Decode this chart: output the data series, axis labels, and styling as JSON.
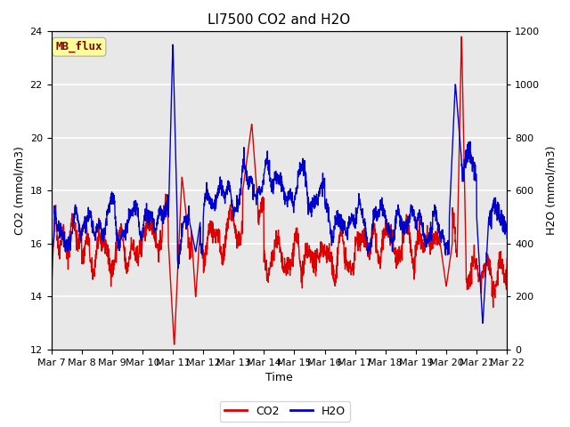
{
  "title": "LI7500 CO2 and H2O",
  "xlabel": "Time",
  "ylabel_left": "CO2 (mmol/m3)",
  "ylabel_right": "H2O (mmol/m3)",
  "ylim_left": [
    12,
    24
  ],
  "ylim_right": [
    0,
    1200
  ],
  "yticks_left": [
    12,
    14,
    16,
    18,
    20,
    22,
    24
  ],
  "yticks_right": [
    0,
    200,
    400,
    600,
    800,
    1000,
    1200
  ],
  "xtick_labels": [
    "Mar 7",
    "Mar 8",
    "Mar 9",
    "Mar 10",
    "Mar 11",
    "Mar 12",
    "Mar 13",
    "Mar 14",
    "Mar 15",
    "Mar 16",
    "Mar 17",
    "Mar 18",
    "Mar 19",
    "Mar 20",
    "Mar 21",
    "Mar 22"
  ],
  "color_co2": "#dd0000",
  "color_h2o": "#0000cc",
  "legend_co2": "CO2",
  "legend_h2o": "H2O",
  "annotation_text": "MB_flux",
  "annotation_color": "#8b0000",
  "annotation_bg": "#ffff99",
  "background_color": "#e8e8e8",
  "fig_bg_color": "#ffffff",
  "grid_color": "#ffffff",
  "title_fontsize": 11,
  "axis_fontsize": 9,
  "tick_fontsize": 8,
  "legend_fontsize": 9,
  "line_width": 1.0
}
